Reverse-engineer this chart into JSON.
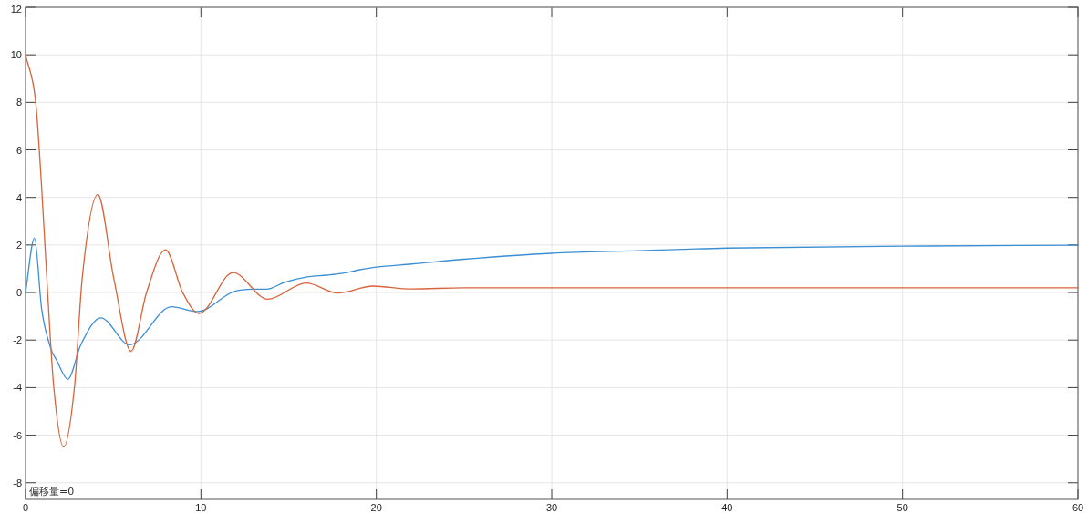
{
  "chart_data": {
    "type": "line",
    "series": [
      {
        "color": "#3b8fd4",
        "x": [
          0,
          0.51,
          0.92,
          1.44,
          1.78,
          2.41,
          3.15,
          4.29,
          5.93,
          8.32,
          9.81,
          11.86,
          13.06,
          13.74,
          14.77,
          16,
          17.2,
          18,
          19,
          20,
          22,
          25,
          30,
          35,
          40,
          50,
          60
        ],
        "values": [
          0,
          2.3,
          -0.7,
          -2.35,
          -2.86,
          -3.65,
          -2.2,
          -1.07,
          -2.2,
          -0.6,
          -0.8,
          0.04,
          0.14,
          0.14,
          0.43,
          0.65,
          0.73,
          0.8,
          0.95,
          1.07,
          1.2,
          1.4,
          1.65,
          1.76,
          1.87,
          1.95,
          1.99
        ]
      },
      {
        "color": "#d9633a",
        "x": [
          0,
          0.58,
          0.92,
          1.26,
          1.6,
          2.17,
          2.8,
          3.23,
          4.12,
          5.03,
          6.02,
          6.9,
          7.98,
          8.96,
          9.9,
          11.83,
          13.8,
          16,
          17.8,
          19.8,
          22,
          25,
          30,
          40,
          50,
          60
        ],
        "values": [
          10.0,
          8.0,
          4.4,
          0,
          -3.9,
          -6.5,
          -3.9,
          0.6,
          4.13,
          0.6,
          -2.47,
          0,
          1.8,
          0,
          -0.88,
          0.84,
          -0.28,
          0.4,
          -0.02,
          0.27,
          0.15,
          0.2,
          0.2,
          0.2,
          0.2,
          0.2
        ]
      }
    ],
    "xlim": [
      0,
      60
    ],
    "xticks": [
      0,
      10,
      20,
      30,
      40,
      50,
      60
    ],
    "ylim": [
      -8.7,
      12
    ],
    "yticks": [
      12,
      10,
      8,
      6,
      4,
      2,
      0,
      -2,
      -4,
      -6,
      -8
    ],
    "grid": true,
    "annotations": [
      "偏移量=0"
    ]
  }
}
